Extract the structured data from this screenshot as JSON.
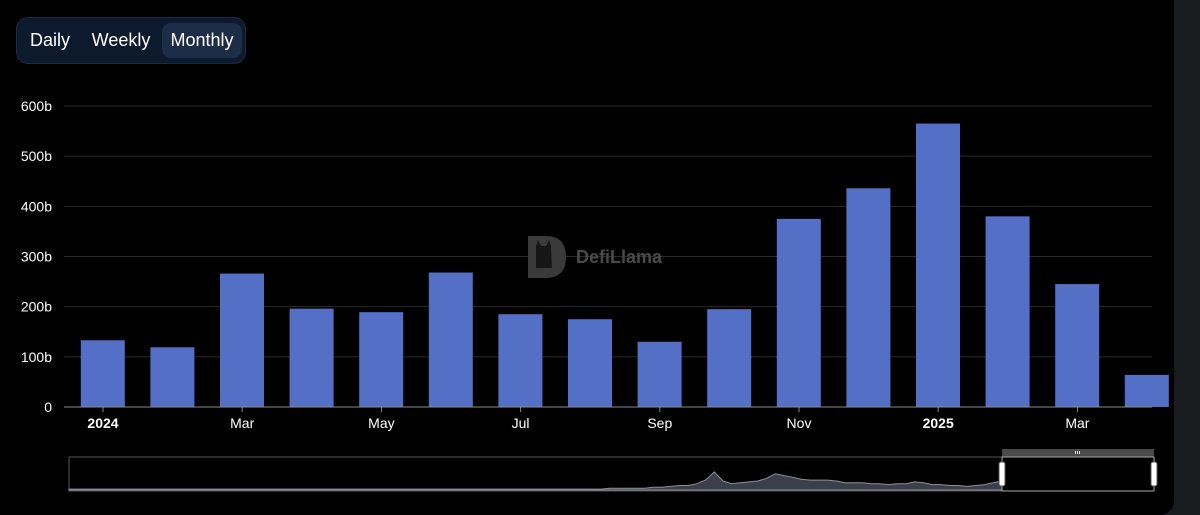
{
  "toggle": {
    "options": [
      "Daily",
      "Weekly",
      "Monthly"
    ],
    "selected": "Monthly"
  },
  "watermark": {
    "text": "DefiLlama",
    "icon": "llama-logo-icon"
  },
  "colors": {
    "bar": "#5470c6",
    "background": "#000000",
    "toggle_bg": "#0d1a2e",
    "toggle_active": "#1e2d47",
    "grid": "#2a2a2a",
    "text": "#ffffff"
  },
  "chart_data": {
    "type": "bar",
    "categories": [
      "2024-01",
      "2024-02",
      "2024-03",
      "2024-04",
      "2024-05",
      "2024-06",
      "2024-07",
      "2024-08",
      "2024-09",
      "2024-10",
      "2024-11",
      "2024-12",
      "2025-01",
      "2025-02",
      "2025-03",
      "2025-04"
    ],
    "values": [
      133,
      119,
      266,
      196,
      189,
      268,
      185,
      175,
      130,
      195,
      375,
      436,
      565,
      380,
      245,
      64
    ],
    "unit": "b",
    "xtick_labels": [
      {
        "category": "2024-01",
        "label": "2024",
        "bold": true
      },
      {
        "category": "2024-03",
        "label": "Mar",
        "bold": false
      },
      {
        "category": "2024-05",
        "label": "May",
        "bold": false
      },
      {
        "category": "2024-07",
        "label": "Jul",
        "bold": false
      },
      {
        "category": "2024-09",
        "label": "Sep",
        "bold": false
      },
      {
        "category": "2024-11",
        "label": "Nov",
        "bold": false
      },
      {
        "category": "2025-01",
        "label": "2025",
        "bold": true
      },
      {
        "category": "2025-03",
        "label": "Mar",
        "bold": false
      }
    ],
    "yticks": [
      0,
      100,
      200,
      300,
      400,
      500,
      600
    ],
    "ytick_labels": [
      "0",
      "100b",
      "200b",
      "300b",
      "400b",
      "500b",
      "600b"
    ],
    "ylim": [
      0,
      600
    ],
    "grid": true,
    "data_zoom": {
      "present": true,
      "selected_range": "2024-01 to 2025-04",
      "overview_profile": [
        1,
        1,
        1,
        1,
        1,
        1,
        1,
        1,
        1,
        1,
        1,
        1,
        1,
        1,
        1,
        1,
        1,
        1,
        1,
        1,
        1,
        1,
        1,
        1,
        1,
        1,
        1,
        1,
        1,
        1,
        1,
        1,
        1,
        1,
        1,
        1,
        1,
        1,
        1,
        1,
        1,
        1,
        1,
        1,
        1,
        1,
        1,
        1,
        1,
        1,
        1,
        1,
        1,
        1,
        1,
        1,
        1,
        1,
        1,
        1,
        1,
        1,
        2,
        2,
        2,
        2,
        2,
        3,
        3,
        4,
        5,
        5,
        7,
        11,
        20,
        10,
        7,
        8,
        9,
        10,
        13,
        18,
        16,
        14,
        12,
        11,
        11,
        11,
        10,
        8,
        8,
        8,
        7,
        7,
        6,
        7,
        7,
        9,
        8,
        6,
        6,
        5,
        5,
        4,
        5,
        6,
        8,
        10
      ]
    }
  }
}
